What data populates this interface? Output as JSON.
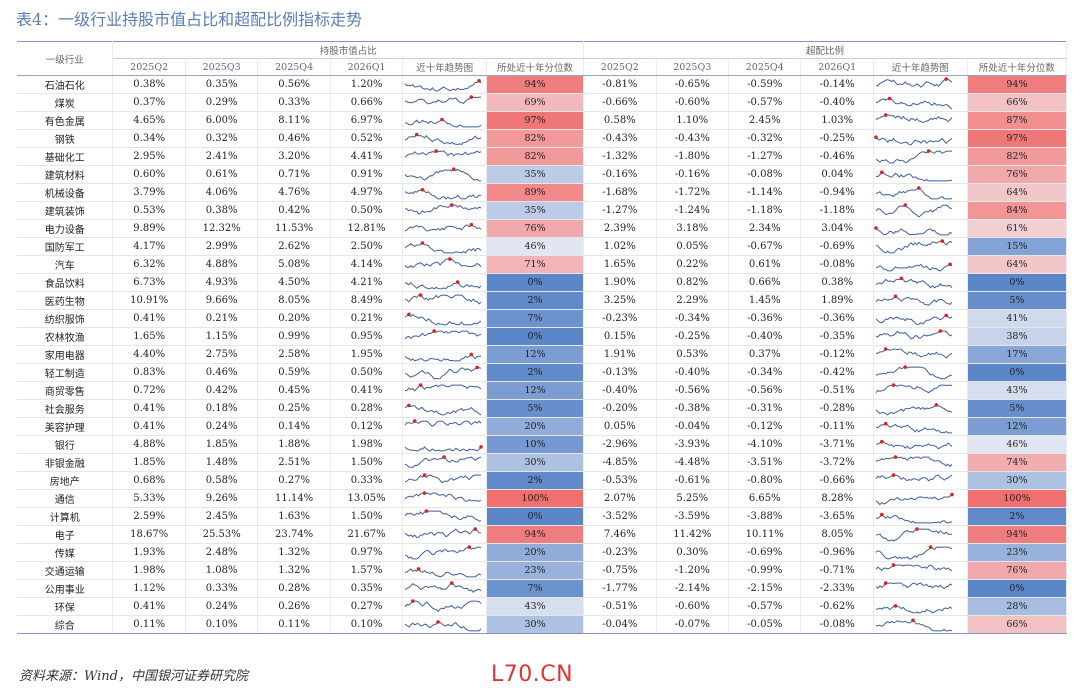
{
  "title": "表4：一级行业持股市值占比和超配比例指标走势",
  "headers": {
    "industry": "一级行业",
    "group1": "持股市值占比",
    "group2": "超配比例",
    "quarters": [
      "2025Q2",
      "2025Q3",
      "2025Q4",
      "2026Q1"
    ],
    "trend": "近十年趋势图",
    "percentile": "所处近十年分位数"
  },
  "rows": [
    {
      "name": "石油石化",
      "hold": [
        "0.38%",
        "0.35%",
        "0.56%",
        "1.20%"
      ],
      "hold_pct": "94%",
      "hold_pct_v": 94,
      "over": [
        "-0.81%",
        "-0.65%",
        "-0.59%",
        "-0.14%"
      ],
      "over_pct": "94%",
      "over_pct_v": 94
    },
    {
      "name": "煤炭",
      "hold": [
        "0.37%",
        "0.29%",
        "0.33%",
        "0.66%"
      ],
      "hold_pct": "69%",
      "hold_pct_v": 69,
      "over": [
        "-0.66%",
        "-0.60%",
        "-0.57%",
        "-0.40%"
      ],
      "over_pct": "66%",
      "over_pct_v": 66
    },
    {
      "name": "有色金属",
      "hold": [
        "4.65%",
        "6.00%",
        "8.11%",
        "6.97%"
      ],
      "hold_pct": "97%",
      "hold_pct_v": 97,
      "over": [
        "0.58%",
        "1.10%",
        "2.45%",
        "1.03%"
      ],
      "over_pct": "87%",
      "over_pct_v": 87
    },
    {
      "name": "钢铁",
      "hold": [
        "0.34%",
        "0.32%",
        "0.46%",
        "0.52%"
      ],
      "hold_pct": "82%",
      "hold_pct_v": 82,
      "over": [
        "-0.43%",
        "-0.43%",
        "-0.32%",
        "-0.25%"
      ],
      "over_pct": "97%",
      "over_pct_v": 97
    },
    {
      "name": "基础化工",
      "hold": [
        "2.95%",
        "2.41%",
        "3.20%",
        "4.41%"
      ],
      "hold_pct": "82%",
      "hold_pct_v": 82,
      "over": [
        "-1.32%",
        "-1.80%",
        "-1.27%",
        "-0.46%"
      ],
      "over_pct": "82%",
      "over_pct_v": 82
    },
    {
      "name": "建筑材料",
      "hold": [
        "0.60%",
        "0.61%",
        "0.71%",
        "0.91%"
      ],
      "hold_pct": "35%",
      "hold_pct_v": 35,
      "over": [
        "-0.16%",
        "-0.16%",
        "-0.08%",
        "0.04%"
      ],
      "over_pct": "76%",
      "over_pct_v": 76
    },
    {
      "name": "机械设备",
      "hold": [
        "3.79%",
        "4.06%",
        "4.76%",
        "4.97%"
      ],
      "hold_pct": "89%",
      "hold_pct_v": 89,
      "over": [
        "-1.68%",
        "-1.72%",
        "-1.14%",
        "-0.94%"
      ],
      "over_pct": "64%",
      "over_pct_v": 64
    },
    {
      "name": "建筑装饰",
      "hold": [
        "0.53%",
        "0.38%",
        "0.42%",
        "0.50%"
      ],
      "hold_pct": "35%",
      "hold_pct_v": 35,
      "over": [
        "-1.27%",
        "-1.24%",
        "-1.18%",
        "-1.18%"
      ],
      "over_pct": "84%",
      "over_pct_v": 84
    },
    {
      "name": "电力设备",
      "hold": [
        "9.89%",
        "12.32%",
        "11.53%",
        "12.81%"
      ],
      "hold_pct": "76%",
      "hold_pct_v": 76,
      "over": [
        "2.39%",
        "3.18%",
        "2.34%",
        "3.04%"
      ],
      "over_pct": "61%",
      "over_pct_v": 61
    },
    {
      "name": "国防军工",
      "hold": [
        "4.17%",
        "2.99%",
        "2.62%",
        "2.50%"
      ],
      "hold_pct": "46%",
      "hold_pct_v": 46,
      "over": [
        "1.02%",
        "0.05%",
        "-0.67%",
        "-0.69%"
      ],
      "over_pct": "15%",
      "over_pct_v": 15
    },
    {
      "name": "汽车",
      "hold": [
        "6.32%",
        "4.88%",
        "5.08%",
        "4.14%"
      ],
      "hold_pct": "71%",
      "hold_pct_v": 71,
      "over": [
        "1.65%",
        "0.22%",
        "0.61%",
        "-0.08%"
      ],
      "over_pct": "64%",
      "over_pct_v": 64
    },
    {
      "name": "食品饮料",
      "hold": [
        "6.73%",
        "4.93%",
        "4.50%",
        "4.21%"
      ],
      "hold_pct": "0%",
      "hold_pct_v": 0,
      "over": [
        "1.90%",
        "0.82%",
        "0.66%",
        "0.38%"
      ],
      "over_pct": "0%",
      "over_pct_v": 0
    },
    {
      "name": "医药生物",
      "hold": [
        "10.91%",
        "9.66%",
        "8.05%",
        "8.49%"
      ],
      "hold_pct": "2%",
      "hold_pct_v": 2,
      "over": [
        "3.25%",
        "2.29%",
        "1.45%",
        "1.89%"
      ],
      "over_pct": "5%",
      "over_pct_v": 5
    },
    {
      "name": "纺织服饰",
      "hold": [
        "0.41%",
        "0.21%",
        "0.20%",
        "0.21%"
      ],
      "hold_pct": "7%",
      "hold_pct_v": 7,
      "over": [
        "-0.23%",
        "-0.34%",
        "-0.36%",
        "-0.36%"
      ],
      "over_pct": "41%",
      "over_pct_v": 41
    },
    {
      "name": "农林牧渔",
      "hold": [
        "1.65%",
        "1.15%",
        "0.99%",
        "0.95%"
      ],
      "hold_pct": "0%",
      "hold_pct_v": 0,
      "over": [
        "0.15%",
        "-0.25%",
        "-0.40%",
        "-0.35%"
      ],
      "over_pct": "38%",
      "over_pct_v": 38
    },
    {
      "name": "家用电器",
      "hold": [
        "4.40%",
        "2.75%",
        "2.58%",
        "1.95%"
      ],
      "hold_pct": "12%",
      "hold_pct_v": 12,
      "over": [
        "1.91%",
        "0.53%",
        "0.37%",
        "-0.12%"
      ],
      "over_pct": "17%",
      "over_pct_v": 17
    },
    {
      "name": "轻工制造",
      "hold": [
        "0.83%",
        "0.46%",
        "0.59%",
        "0.50%"
      ],
      "hold_pct": "2%",
      "hold_pct_v": 2,
      "over": [
        "-0.13%",
        "-0.40%",
        "-0.34%",
        "-0.42%"
      ],
      "over_pct": "0%",
      "over_pct_v": 0
    },
    {
      "name": "商贸零售",
      "hold": [
        "0.72%",
        "0.42%",
        "0.45%",
        "0.41%"
      ],
      "hold_pct": "12%",
      "hold_pct_v": 12,
      "over": [
        "-0.40%",
        "-0.56%",
        "-0.56%",
        "-0.51%"
      ],
      "over_pct": "43%",
      "over_pct_v": 43
    },
    {
      "name": "社会服务",
      "hold": [
        "0.41%",
        "0.18%",
        "0.25%",
        "0.28%"
      ],
      "hold_pct": "5%",
      "hold_pct_v": 5,
      "over": [
        "-0.20%",
        "-0.38%",
        "-0.31%",
        "-0.28%"
      ],
      "over_pct": "5%",
      "over_pct_v": 5
    },
    {
      "name": "美容护理",
      "hold": [
        "0.41%",
        "0.24%",
        "0.14%",
        "0.12%"
      ],
      "hold_pct": "20%",
      "hold_pct_v": 20,
      "over": [
        "0.05%",
        "-0.04%",
        "-0.12%",
        "-0.11%"
      ],
      "over_pct": "12%",
      "over_pct_v": 12
    },
    {
      "name": "银行",
      "hold": [
        "4.88%",
        "1.85%",
        "1.88%",
        "1.98%"
      ],
      "hold_pct": "10%",
      "hold_pct_v": 10,
      "over": [
        "-2.96%",
        "-3.93%",
        "-4.10%",
        "-3.71%"
      ],
      "over_pct": "46%",
      "over_pct_v": 46
    },
    {
      "name": "非银金融",
      "hold": [
        "1.85%",
        "1.48%",
        "2.51%",
        "1.50%"
      ],
      "hold_pct": "30%",
      "hold_pct_v": 30,
      "over": [
        "-4.85%",
        "-4.48%",
        "-3.51%",
        "-3.72%"
      ],
      "over_pct": "74%",
      "over_pct_v": 74
    },
    {
      "name": "房地产",
      "hold": [
        "0.68%",
        "0.58%",
        "0.27%",
        "0.33%"
      ],
      "hold_pct": "2%",
      "hold_pct_v": 2,
      "over": [
        "-0.53%",
        "-0.61%",
        "-0.80%",
        "-0.66%"
      ],
      "over_pct": "30%",
      "over_pct_v": 30
    },
    {
      "name": "通信",
      "hold": [
        "5.33%",
        "9.26%",
        "11.14%",
        "13.05%"
      ],
      "hold_pct": "100%",
      "hold_pct_v": 100,
      "over": [
        "2.07%",
        "5.25%",
        "6.65%",
        "8.28%"
      ],
      "over_pct": "100%",
      "over_pct_v": 100
    },
    {
      "name": "计算机",
      "hold": [
        "2.59%",
        "2.45%",
        "1.63%",
        "1.50%"
      ],
      "hold_pct": "0%",
      "hold_pct_v": 0,
      "over": [
        "-3.52%",
        "-3.59%",
        "-3.88%",
        "-3.65%"
      ],
      "over_pct": "2%",
      "over_pct_v": 2
    },
    {
      "name": "电子",
      "hold": [
        "18.67%",
        "25.53%",
        "23.74%",
        "21.67%"
      ],
      "hold_pct": "94%",
      "hold_pct_v": 94,
      "over": [
        "7.46%",
        "11.42%",
        "10.11%",
        "8.05%"
      ],
      "over_pct": "94%",
      "over_pct_v": 94
    },
    {
      "name": "传媒",
      "hold": [
        "1.93%",
        "2.48%",
        "1.32%",
        "0.97%"
      ],
      "hold_pct": "20%",
      "hold_pct_v": 20,
      "over": [
        "-0.23%",
        "0.30%",
        "-0.69%",
        "-0.96%"
      ],
      "over_pct": "23%",
      "over_pct_v": 23
    },
    {
      "name": "交通运输",
      "hold": [
        "1.98%",
        "1.08%",
        "1.32%",
        "1.57%"
      ],
      "hold_pct": "23%",
      "hold_pct_v": 23,
      "over": [
        "-0.75%",
        "-1.20%",
        "-0.99%",
        "-0.71%"
      ],
      "over_pct": "76%",
      "over_pct_v": 76
    },
    {
      "name": "公用事业",
      "hold": [
        "1.12%",
        "0.33%",
        "0.28%",
        "0.35%"
      ],
      "hold_pct": "7%",
      "hold_pct_v": 7,
      "over": [
        "-1.77%",
        "-2.14%",
        "-2.15%",
        "-2.33%"
      ],
      "over_pct": "0%",
      "over_pct_v": 0
    },
    {
      "name": "环保",
      "hold": [
        "0.41%",
        "0.24%",
        "0.26%",
        "0.27%"
      ],
      "hold_pct": "43%",
      "hold_pct_v": 43,
      "over": [
        "-0.51%",
        "-0.60%",
        "-0.57%",
        "-0.62%"
      ],
      "over_pct": "28%",
      "over_pct_v": 28
    },
    {
      "name": "综合",
      "hold": [
        "0.11%",
        "0.10%",
        "0.11%",
        "0.10%"
      ],
      "hold_pct": "30%",
      "hold_pct_v": 30,
      "over": [
        "-0.04%",
        "-0.07%",
        "-0.05%",
        "-0.08%"
      ],
      "over_pct": "66%",
      "over_pct_v": 66
    }
  ],
  "colors": {
    "high": "#f07070",
    "low": "#5b86c8",
    "mid": "#f3f3f8",
    "sparkline": "#3f5f9f",
    "sparkdot": "#e02020"
  },
  "source": "资料来源：Wind，中国银河证券研究院",
  "watermark": "L70.CN"
}
